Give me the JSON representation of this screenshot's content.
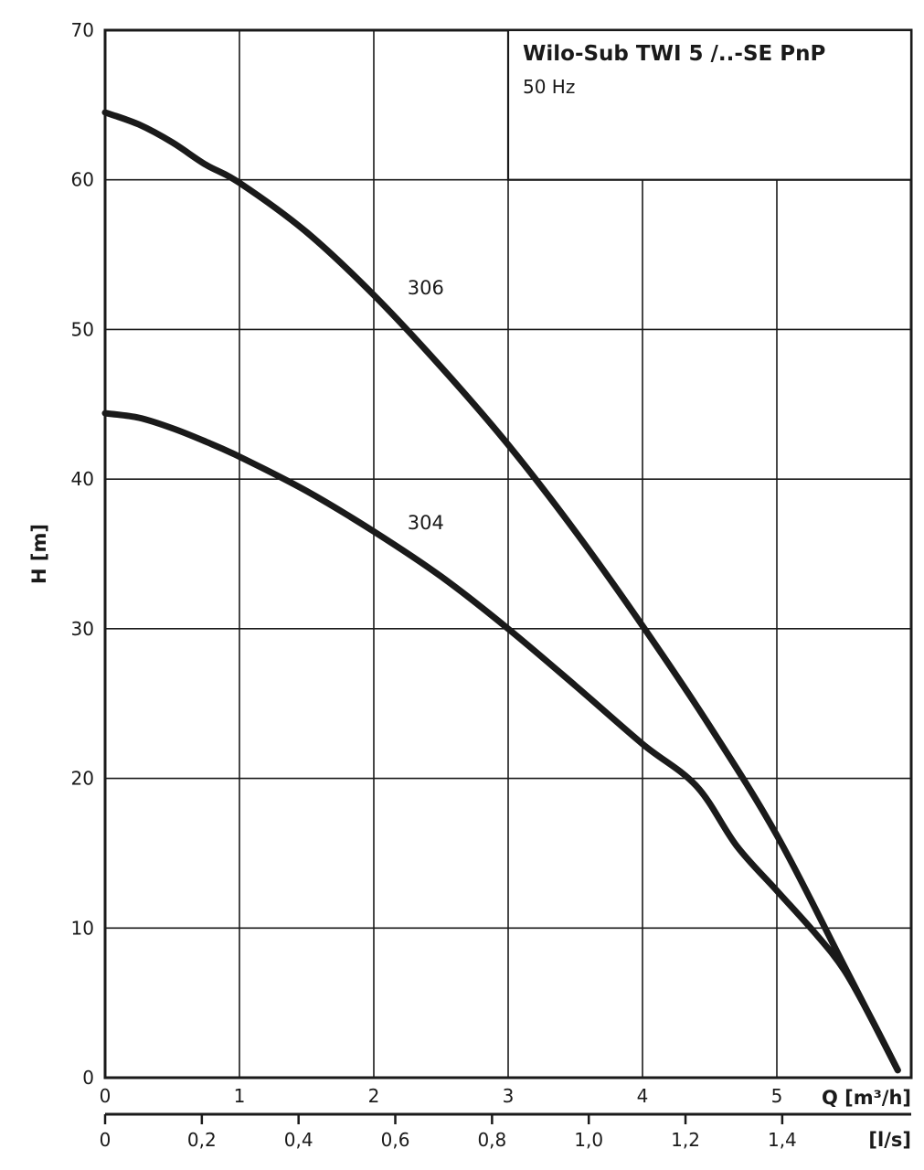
{
  "chart_data": {
    "type": "line",
    "title": "Wilo-Sub TWI 5 /..-SE PnP",
    "subtitle": "50 Hz",
    "xlabel": "Q [m³/h]",
    "x2label": "[l/s]",
    "ylabel": "H [m]",
    "xlim": [
      0,
      6
    ],
    "ylim": [
      0,
      70
    ],
    "x_ticks": [
      0,
      1,
      2,
      3,
      4,
      5
    ],
    "x_tick_labels": [
      "0",
      "1",
      "2",
      "3",
      "4",
      "5"
    ],
    "y_ticks": [
      0,
      10,
      20,
      30,
      40,
      50,
      60,
      70
    ],
    "y_tick_labels": [
      "0",
      "10",
      "20",
      "30",
      "40",
      "50",
      "60",
      "70"
    ],
    "x2_ticks": [
      0,
      0.2,
      0.4,
      0.6,
      0.8,
      1.0,
      1.2,
      1.4
    ],
    "x2_tick_labels": [
      "0",
      "0,2",
      "0,4",
      "0,6",
      "0,8",
      "1,0",
      "1,2",
      "1,4"
    ],
    "grid": true,
    "series": [
      {
        "name": "306",
        "x": [
          0,
          0.25,
          0.5,
          0.75,
          1.0,
          1.5,
          2.0,
          2.5,
          3.0,
          3.5,
          4.0,
          4.5,
          5.0,
          5.5,
          5.9
        ],
        "y": [
          64.5,
          63.7,
          62.5,
          61.0,
          59.8,
          56.5,
          52.3,
          47.5,
          42.3,
          36.5,
          30.2,
          23.5,
          16.2,
          7.5,
          0.5
        ]
      },
      {
        "name": "304",
        "x": [
          0,
          0.25,
          0.5,
          0.75,
          1.0,
          1.5,
          2.0,
          2.5,
          3.0,
          3.5,
          4.0,
          4.4,
          4.7,
          5.0,
          5.3,
          5.5,
          5.7,
          5.9
        ],
        "y": [
          44.4,
          44.1,
          43.4,
          42.5,
          41.5,
          39.2,
          36.5,
          33.5,
          30.0,
          26.2,
          22.3,
          19.5,
          15.5,
          12.5,
          9.5,
          7.2,
          4.0,
          0.5
        ]
      }
    ]
  }
}
